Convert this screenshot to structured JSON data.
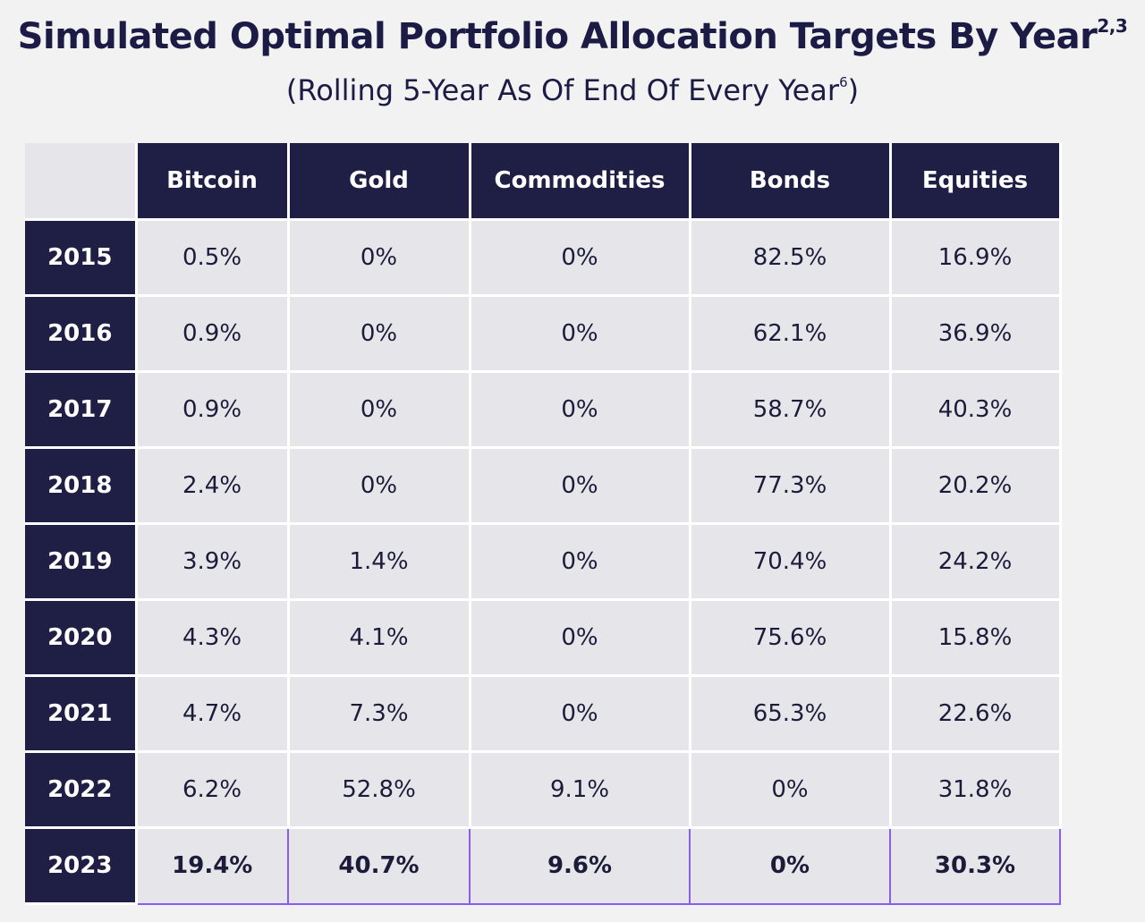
{
  "header": {
    "title": "Simulated Optimal Portfolio Allocation Targets By Year",
    "title_superscript": "2,3",
    "subtitle_prefix": "(Rolling 5-Year As Of End Of Every Year",
    "subtitle_superscript": "6",
    "subtitle_suffix": ")"
  },
  "colors": {
    "header_bg": "#1f1f45",
    "cell_bg": "#e6e6ea",
    "highlight_border": "#8a5cf0",
    "page_bg": "#f2f2f2"
  },
  "chart_data": {
    "type": "table",
    "columns": [
      "Bitcoin",
      "Gold",
      "Commodities",
      "Bonds",
      "Equities"
    ],
    "highlighted_row": "2023",
    "rows": [
      {
        "year": "2015",
        "values": [
          "0.5%",
          "0%",
          "0%",
          "82.5%",
          "16.9%"
        ]
      },
      {
        "year": "2016",
        "values": [
          "0.9%",
          "0%",
          "0%",
          "62.1%",
          "36.9%"
        ]
      },
      {
        "year": "2017",
        "values": [
          "0.9%",
          "0%",
          "0%",
          "58.7%",
          "40.3%"
        ]
      },
      {
        "year": "2018",
        "values": [
          "2.4%",
          "0%",
          "0%",
          "77.3%",
          "20.2%"
        ]
      },
      {
        "year": "2019",
        "values": [
          "3.9%",
          "1.4%",
          "0%",
          "70.4%",
          "24.2%"
        ]
      },
      {
        "year": "2020",
        "values": [
          "4.3%",
          "4.1%",
          "0%",
          "75.6%",
          "15.8%"
        ]
      },
      {
        "year": "2021",
        "values": [
          "4.7%",
          "7.3%",
          "0%",
          "65.3%",
          "22.6%"
        ]
      },
      {
        "year": "2022",
        "values": [
          "6.2%",
          "52.8%",
          "9.1%",
          "0%",
          "31.8%"
        ]
      },
      {
        "year": "2023",
        "values": [
          "19.4%",
          "40.7%",
          "9.6%",
          "0%",
          "30.3%"
        ]
      }
    ]
  }
}
